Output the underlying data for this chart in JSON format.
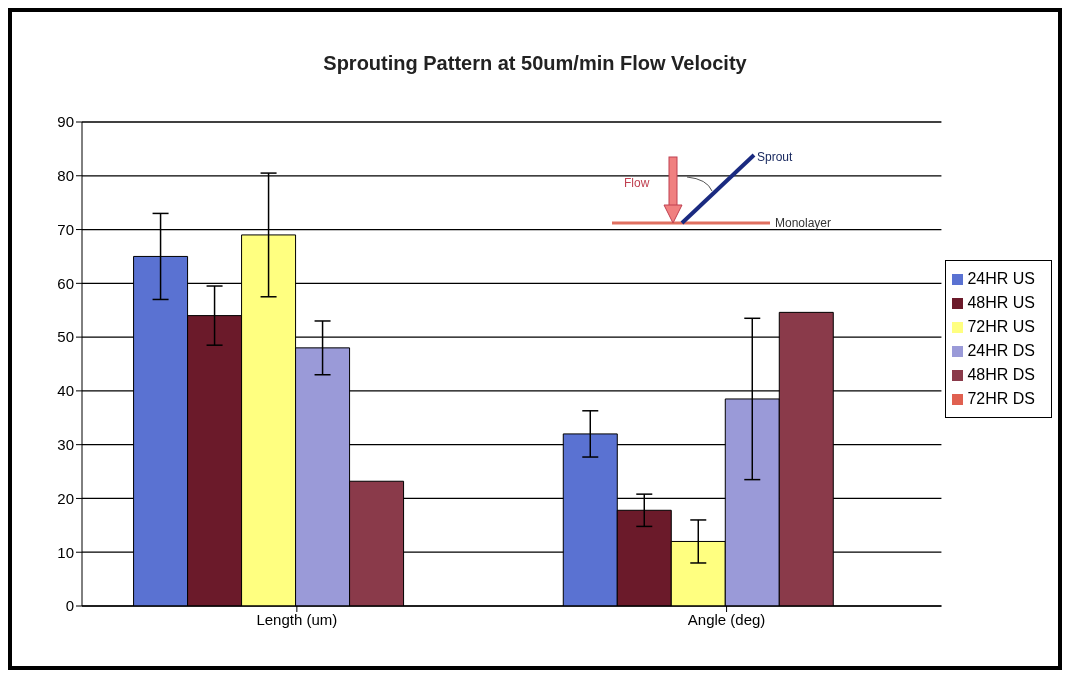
{
  "chart_data": {
    "type": "bar",
    "title": "Sprouting Pattern at 50um/min Flow Velocity",
    "categories": [
      "Length (um)",
      "Angle (deg)"
    ],
    "series": [
      {
        "name": "24HR US",
        "color": "#5a72d2",
        "values": [
          65,
          32
        ],
        "errors": [
          8,
          4.3
        ]
      },
      {
        "name": "48HR US",
        "color": "#6b1a2a",
        "values": [
          54,
          17.8
        ],
        "errors": [
          5.5,
          3
        ]
      },
      {
        "name": "72HR US",
        "color": "#ffff80",
        "values": [
          69,
          12
        ],
        "errors": [
          11.5,
          4
        ]
      },
      {
        "name": "24HR DS",
        "color": "#9a9ad8",
        "values": [
          48,
          38.5
        ],
        "errors": [
          5,
          15
        ]
      },
      {
        "name": "48HR DS",
        "color": "#8a3a4a",
        "values": [
          23.2,
          54.6
        ],
        "errors": [
          null,
          null
        ]
      },
      {
        "name": "72HR DS",
        "color": "#e06050",
        "values": [
          null,
          null
        ]
      }
    ],
    "ylim": [
      0,
      90
    ],
    "yticks": [
      0,
      10,
      20,
      30,
      40,
      50,
      60,
      70,
      80,
      90
    ],
    "grid": "y",
    "legend": "right",
    "annotations": [
      "Flow",
      "Sprout",
      "Monolayer"
    ]
  }
}
